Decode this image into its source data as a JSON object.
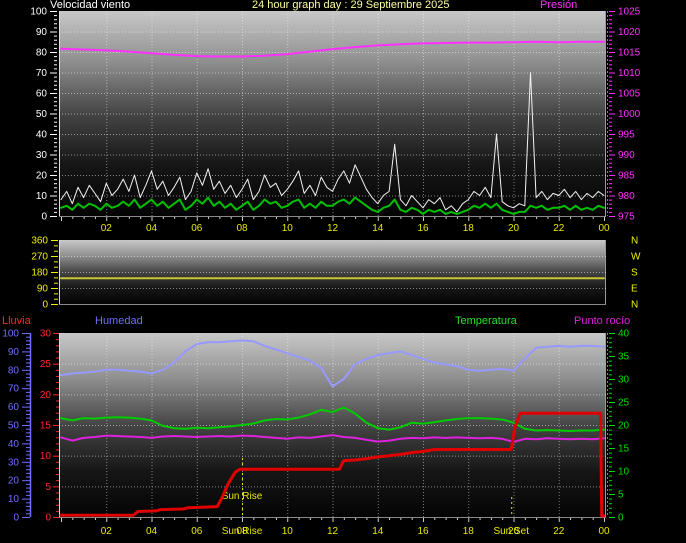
{
  "header": {
    "wind_speed_label": "Velocidad viento",
    "title": "24 hour graph day : 29 Septiembre 2025",
    "pressure_label": "Presión"
  },
  "legend": {
    "rain": "Lluvia",
    "humidity": "Humedad",
    "temperature": "Temperatura",
    "dew_point": "Punto rocío"
  },
  "colors": {
    "background": "#000000",
    "panel_gradient": [
      "#c8c8c8",
      "#8e8e8e",
      "#454545",
      "#161616",
      "#040404"
    ],
    "title": "#ffffa0",
    "wind_label": "#ffffff",
    "left_axis_p1": "#ffffff",
    "pressure": "#ff30ff",
    "wind_gust": "#f2f2f2",
    "wind_avg": "#00c000",
    "x_labels": "#e8e800",
    "direction_axis": "#f0f000",
    "direction_line": "#c8c832",
    "compass": "#f0f000",
    "humidity": "#9898ff",
    "humidity_axis": "#7070ff",
    "temperature": "#00cc00",
    "temperature_axis": "#00dd00",
    "dew_point": "#dd22dd",
    "rain": "#e00000",
    "rain_axis": "#ff2828",
    "sun": "#e8e800",
    "grid": "#ffffff"
  },
  "chart_data": [
    {
      "id": "wind-speed-and-pressure",
      "type": "line",
      "x_axis": {
        "range_hours": [
          0,
          24
        ],
        "tick_hours": [
          2,
          4,
          6,
          8,
          10,
          12,
          14,
          16,
          18,
          20,
          22,
          24
        ],
        "tick_labels": [
          "02",
          "04",
          "06",
          "08",
          "10",
          "12",
          "14",
          "16",
          "18",
          "20",
          "22",
          "00"
        ]
      },
      "left_axis": {
        "title": "Velocidad viento",
        "min": 0,
        "max": 100,
        "tick_step": 10
      },
      "right_axis": {
        "title": "Presión",
        "min": 975,
        "max": 1025,
        "tick_step": 5
      },
      "series": [
        {
          "name": "wind-gust",
          "axis": "left",
          "interval_hours": 0.25,
          "values": [
            8,
            12,
            6,
            14,
            9,
            15,
            11,
            7,
            16,
            10,
            13,
            18,
            12,
            20,
            9,
            15,
            22,
            13,
            17,
            10,
            14,
            19,
            8,
            12,
            21,
            15,
            23,
            13,
            17,
            11,
            15,
            9,
            13,
            18,
            8,
            12,
            20,
            14,
            16,
            10,
            13,
            17,
            22,
            11,
            15,
            10,
            19,
            14,
            12,
            18,
            22,
            16,
            25,
            19,
            13,
            9,
            6,
            10,
            12,
            35,
            8,
            5,
            10,
            7,
            4,
            8,
            6,
            9,
            3,
            5,
            2,
            6,
            8,
            12,
            10,
            14,
            9,
            40,
            7,
            5,
            4,
            6,
            5,
            70,
            9,
            12,
            8,
            11,
            10,
            13,
            9,
            12,
            8,
            11,
            9,
            12,
            10
          ]
        },
        {
          "name": "wind-average",
          "axis": "left",
          "interval_hours": 0.25,
          "values": [
            4,
            5,
            3,
            6,
            4,
            6,
            5,
            3,
            6,
            4,
            5,
            7,
            5,
            8,
            4,
            6,
            8,
            5,
            7,
            4,
            6,
            8,
            3,
            5,
            8,
            6,
            9,
            5,
            7,
            4,
            6,
            3,
            5,
            7,
            3,
            5,
            8,
            6,
            7,
            4,
            5,
            7,
            8,
            4,
            6,
            4,
            7,
            5,
            5,
            7,
            8,
            6,
            9,
            7,
            5,
            3,
            2,
            4,
            5,
            8,
            3,
            2,
            4,
            3,
            1,
            3,
            2,
            3,
            1,
            2,
            1,
            2,
            3,
            5,
            4,
            6,
            4,
            6,
            3,
            2,
            1,
            2,
            2,
            5,
            4,
            5,
            3,
            4,
            4,
            5,
            3,
            5,
            3,
            4,
            3,
            5,
            4
          ]
        },
        {
          "name": "pressure-hpa",
          "axis": "right",
          "interval_hours": 1,
          "values": [
            1015.8,
            1015.6,
            1015.4,
            1015.1,
            1014.7,
            1014.3,
            1014.0,
            1013.9,
            1013.9,
            1014.1,
            1014.5,
            1015.1,
            1015.7,
            1016.2,
            1016.6,
            1016.9,
            1017.1,
            1017.2,
            1017.3,
            1017.3,
            1017.4,
            1017.5,
            1017.4,
            1017.5,
            1017.5
          ]
        }
      ]
    },
    {
      "id": "wind-direction",
      "type": "line",
      "left_axis": {
        "min": 0,
        "max": 360,
        "ticks": [
          0,
          90,
          180,
          270,
          360
        ]
      },
      "right_compass_labels": [
        "N",
        "W",
        "S",
        "E",
        "N"
      ],
      "series": [
        {
          "name": "wind-direction-degrees",
          "points": [
            [
              0,
              145
            ],
            [
              24,
              145
            ]
          ]
        }
      ]
    },
    {
      "id": "humidity-temperature-dewpoint-rain",
      "type": "line",
      "x_axis": {
        "range_hours": [
          0,
          24
        ],
        "tick_hours": [
          2,
          4,
          6,
          8,
          10,
          12,
          14,
          16,
          18,
          20,
          22,
          24
        ],
        "tick_labels": [
          "02",
          "04",
          "06",
          "08",
          "10",
          "12",
          "14",
          "16",
          "18",
          "20",
          "22",
          "00"
        ]
      },
      "humidity_axis": {
        "title": "Humedad",
        "min": 0,
        "max": 100,
        "tick_step": 10
      },
      "rain_axis": {
        "title": "Lluvia",
        "min": 0,
        "max": 30,
        "tick_step": 5
      },
      "temperature_axis": {
        "title": "Temperatura",
        "min": 0,
        "max": 40,
        "tick_step": 5
      },
      "series": [
        {
          "name": "humidity-percent",
          "axis": "humidity",
          "interval_hours": 0.5,
          "values": [
            77,
            78,
            78.5,
            79,
            80,
            80,
            79.5,
            79,
            78,
            80,
            84,
            90,
            94,
            95,
            95,
            95.5,
            96,
            95.5,
            93,
            91,
            89,
            87,
            85,
            81,
            71,
            75,
            83,
            86,
            88,
            89,
            90,
            88,
            86,
            84,
            83,
            82,
            80,
            79.5,
            80,
            80.5,
            79.5,
            86,
            92,
            92.5,
            93,
            92.5,
            93,
            93,
            92.5
          ]
        },
        {
          "name": "temperature-c",
          "axis": "temperature",
          "interval_hours": 0.5,
          "values": [
            21.5,
            21.0,
            21.5,
            21.4,
            21.6,
            21.7,
            21.6,
            21.4,
            21.0,
            19.8,
            19.3,
            19.2,
            19.4,
            19.3,
            19.5,
            19.7,
            20.0,
            20.3,
            21.0,
            21.3,
            21.2,
            21.6,
            22.3,
            23.3,
            22.8,
            23.8,
            22.5,
            20.5,
            19.3,
            19.0,
            19.5,
            20.5,
            20.3,
            20.6,
            21.0,
            21.3,
            21.5,
            21.5,
            21.4,
            21.2,
            20.5,
            19.2,
            18.8,
            18.9,
            18.8,
            18.7,
            18.8,
            18.8,
            19.0
          ]
        },
        {
          "name": "dew-point-c",
          "axis": "temperature",
          "interval_hours": 0.5,
          "values": [
            17.3,
            16.6,
            17.2,
            17.4,
            17.7,
            17.6,
            17.5,
            17.4,
            17.2,
            17.5,
            17.6,
            17.5,
            17.4,
            17.5,
            17.6,
            17.5,
            17.7,
            17.6,
            17.4,
            17.2,
            17.0,
            17.3,
            17.2,
            17.5,
            17.8,
            17.4,
            17.2,
            16.8,
            16.4,
            16.6,
            17.0,
            17.2,
            17.1,
            17.3,
            17.2,
            17.3,
            17.2,
            17.1,
            17.2,
            17.0,
            16.3,
            17.0,
            16.9,
            17.1,
            17.0,
            16.9,
            17.0,
            16.9,
            17.1
          ]
        },
        {
          "name": "daily-rain",
          "axis": "rain",
          "points": [
            [
              0,
              0.3
            ],
            [
              3.2,
              0.3
            ],
            [
              3.4,
              0.9
            ],
            [
              4.2,
              1.0
            ],
            [
              4.4,
              1.2
            ],
            [
              5.4,
              1.3
            ],
            [
              5.6,
              1.5
            ],
            [
              6.9,
              1.7
            ],
            [
              7.1,
              3.0
            ],
            [
              7.4,
              5.5
            ],
            [
              7.7,
              7.3
            ],
            [
              7.9,
              7.8
            ],
            [
              12.3,
              7.8
            ],
            [
              12.5,
              9.2
            ],
            [
              13.0,
              9.3
            ],
            [
              13.5,
              9.5
            ],
            [
              14.0,
              9.8
            ],
            [
              14.5,
              10.0
            ],
            [
              15.0,
              10.2
            ],
            [
              15.5,
              10.5
            ],
            [
              16.0,
              10.7
            ],
            [
              16.5,
              11.0
            ],
            [
              19.9,
              11.0
            ],
            [
              20.05,
              14.5
            ],
            [
              20.3,
              16.9
            ],
            [
              23.85,
              16.9
            ],
            [
              23.9,
              0.2
            ],
            [
              24,
              0.2
            ]
          ]
        }
      ],
      "sun": {
        "rise_hour": 8.0,
        "set_hour": 19.9,
        "plot_label": "Sun Rise",
        "rise_axis_label": "Sun Rise",
        "set_axis_label": "Sun Set"
      }
    }
  ]
}
